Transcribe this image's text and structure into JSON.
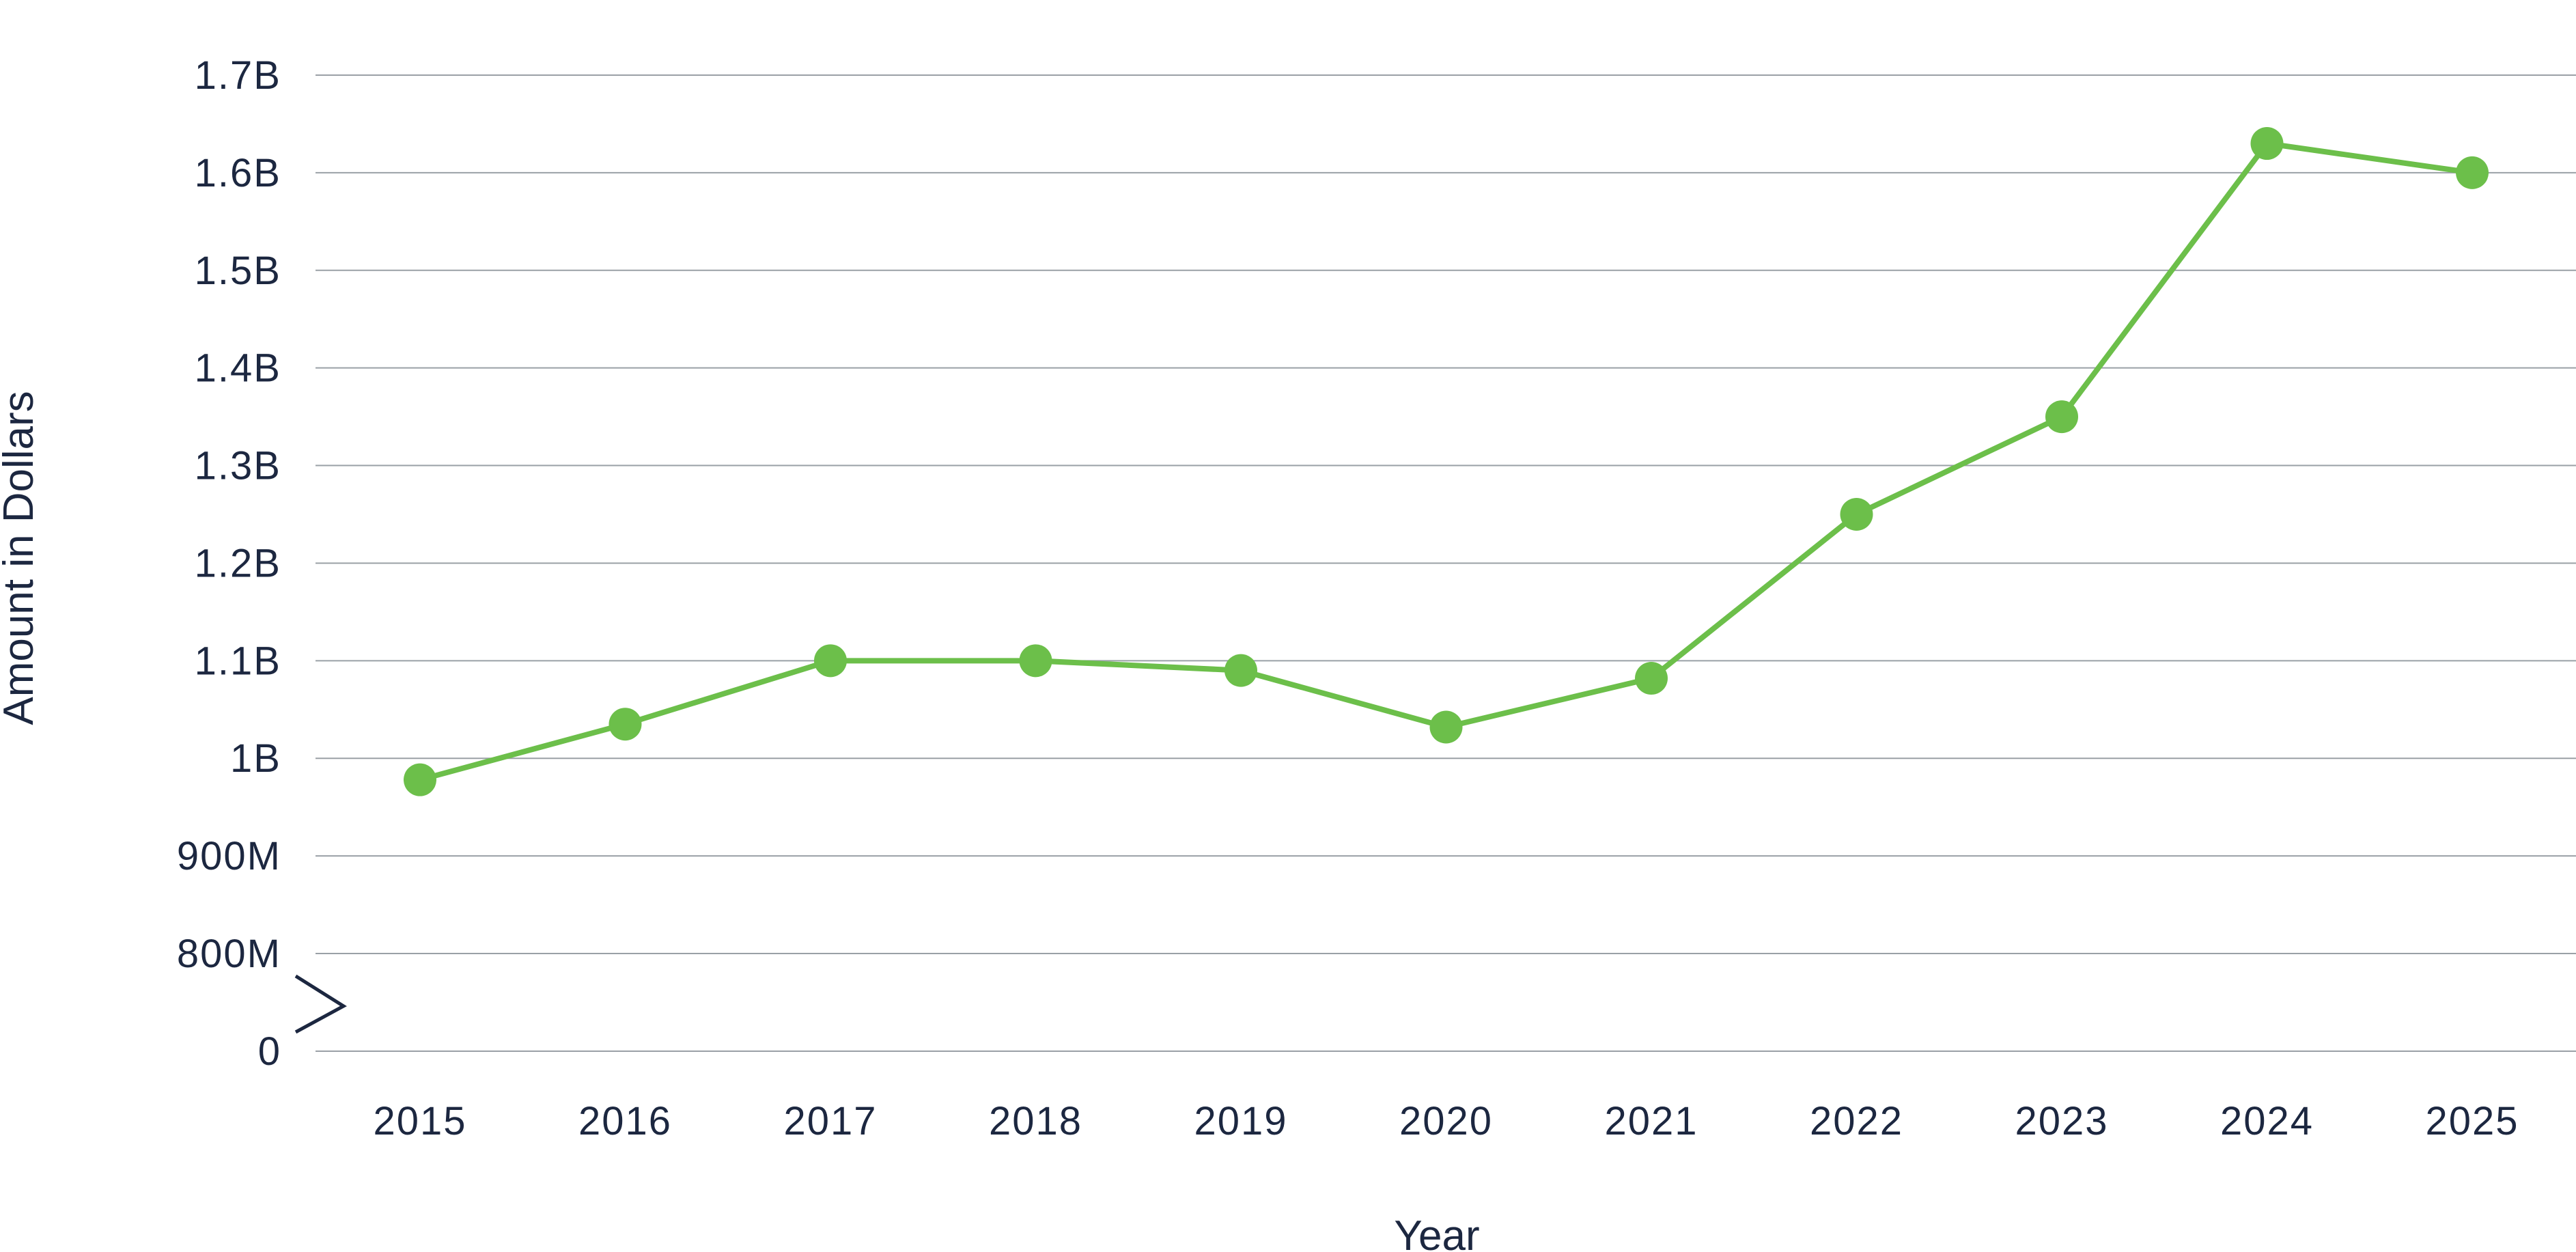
{
  "chart_data": {
    "type": "line",
    "title": "",
    "xlabel": "Year",
    "ylabel": "Amount in Dollars",
    "x": [
      "2015",
      "2016",
      "2017",
      "2018",
      "2019",
      "2020",
      "2021",
      "2022",
      "2023",
      "2024",
      "2025"
    ],
    "series": [
      {
        "values": [
          978000000,
          1035000000,
          1100000000,
          1100000000,
          1090000000,
          1032000000,
          1082000000,
          1250000000,
          1350000000,
          1630000000,
          1600000000
        ],
        "color": "#6cbf4a"
      }
    ],
    "y_ticks": [
      {
        "value": 0,
        "label": "0"
      },
      {
        "value": 800000000,
        "label": "800M"
      },
      {
        "value": 900000000,
        "label": "900M"
      },
      {
        "value": 1000000000,
        "label": "1B"
      },
      {
        "value": 1100000000,
        "label": "1.1B"
      },
      {
        "value": 1200000000,
        "label": "1.2B"
      },
      {
        "value": 1300000000,
        "label": "1.3B"
      },
      {
        "value": 1400000000,
        "label": "1.4B"
      },
      {
        "value": 1500000000,
        "label": "1.5B"
      },
      {
        "value": 1600000000,
        "label": "1.6B"
      },
      {
        "value": 1700000000,
        "label": "1.7B"
      }
    ],
    "ylim": [
      800000000,
      1700000000
    ],
    "axis_break": true,
    "grid": true,
    "legend": "none",
    "colors": {
      "line": "#6cbf4a",
      "grid": "#9aa0a6",
      "text": "#1c2740"
    }
  }
}
